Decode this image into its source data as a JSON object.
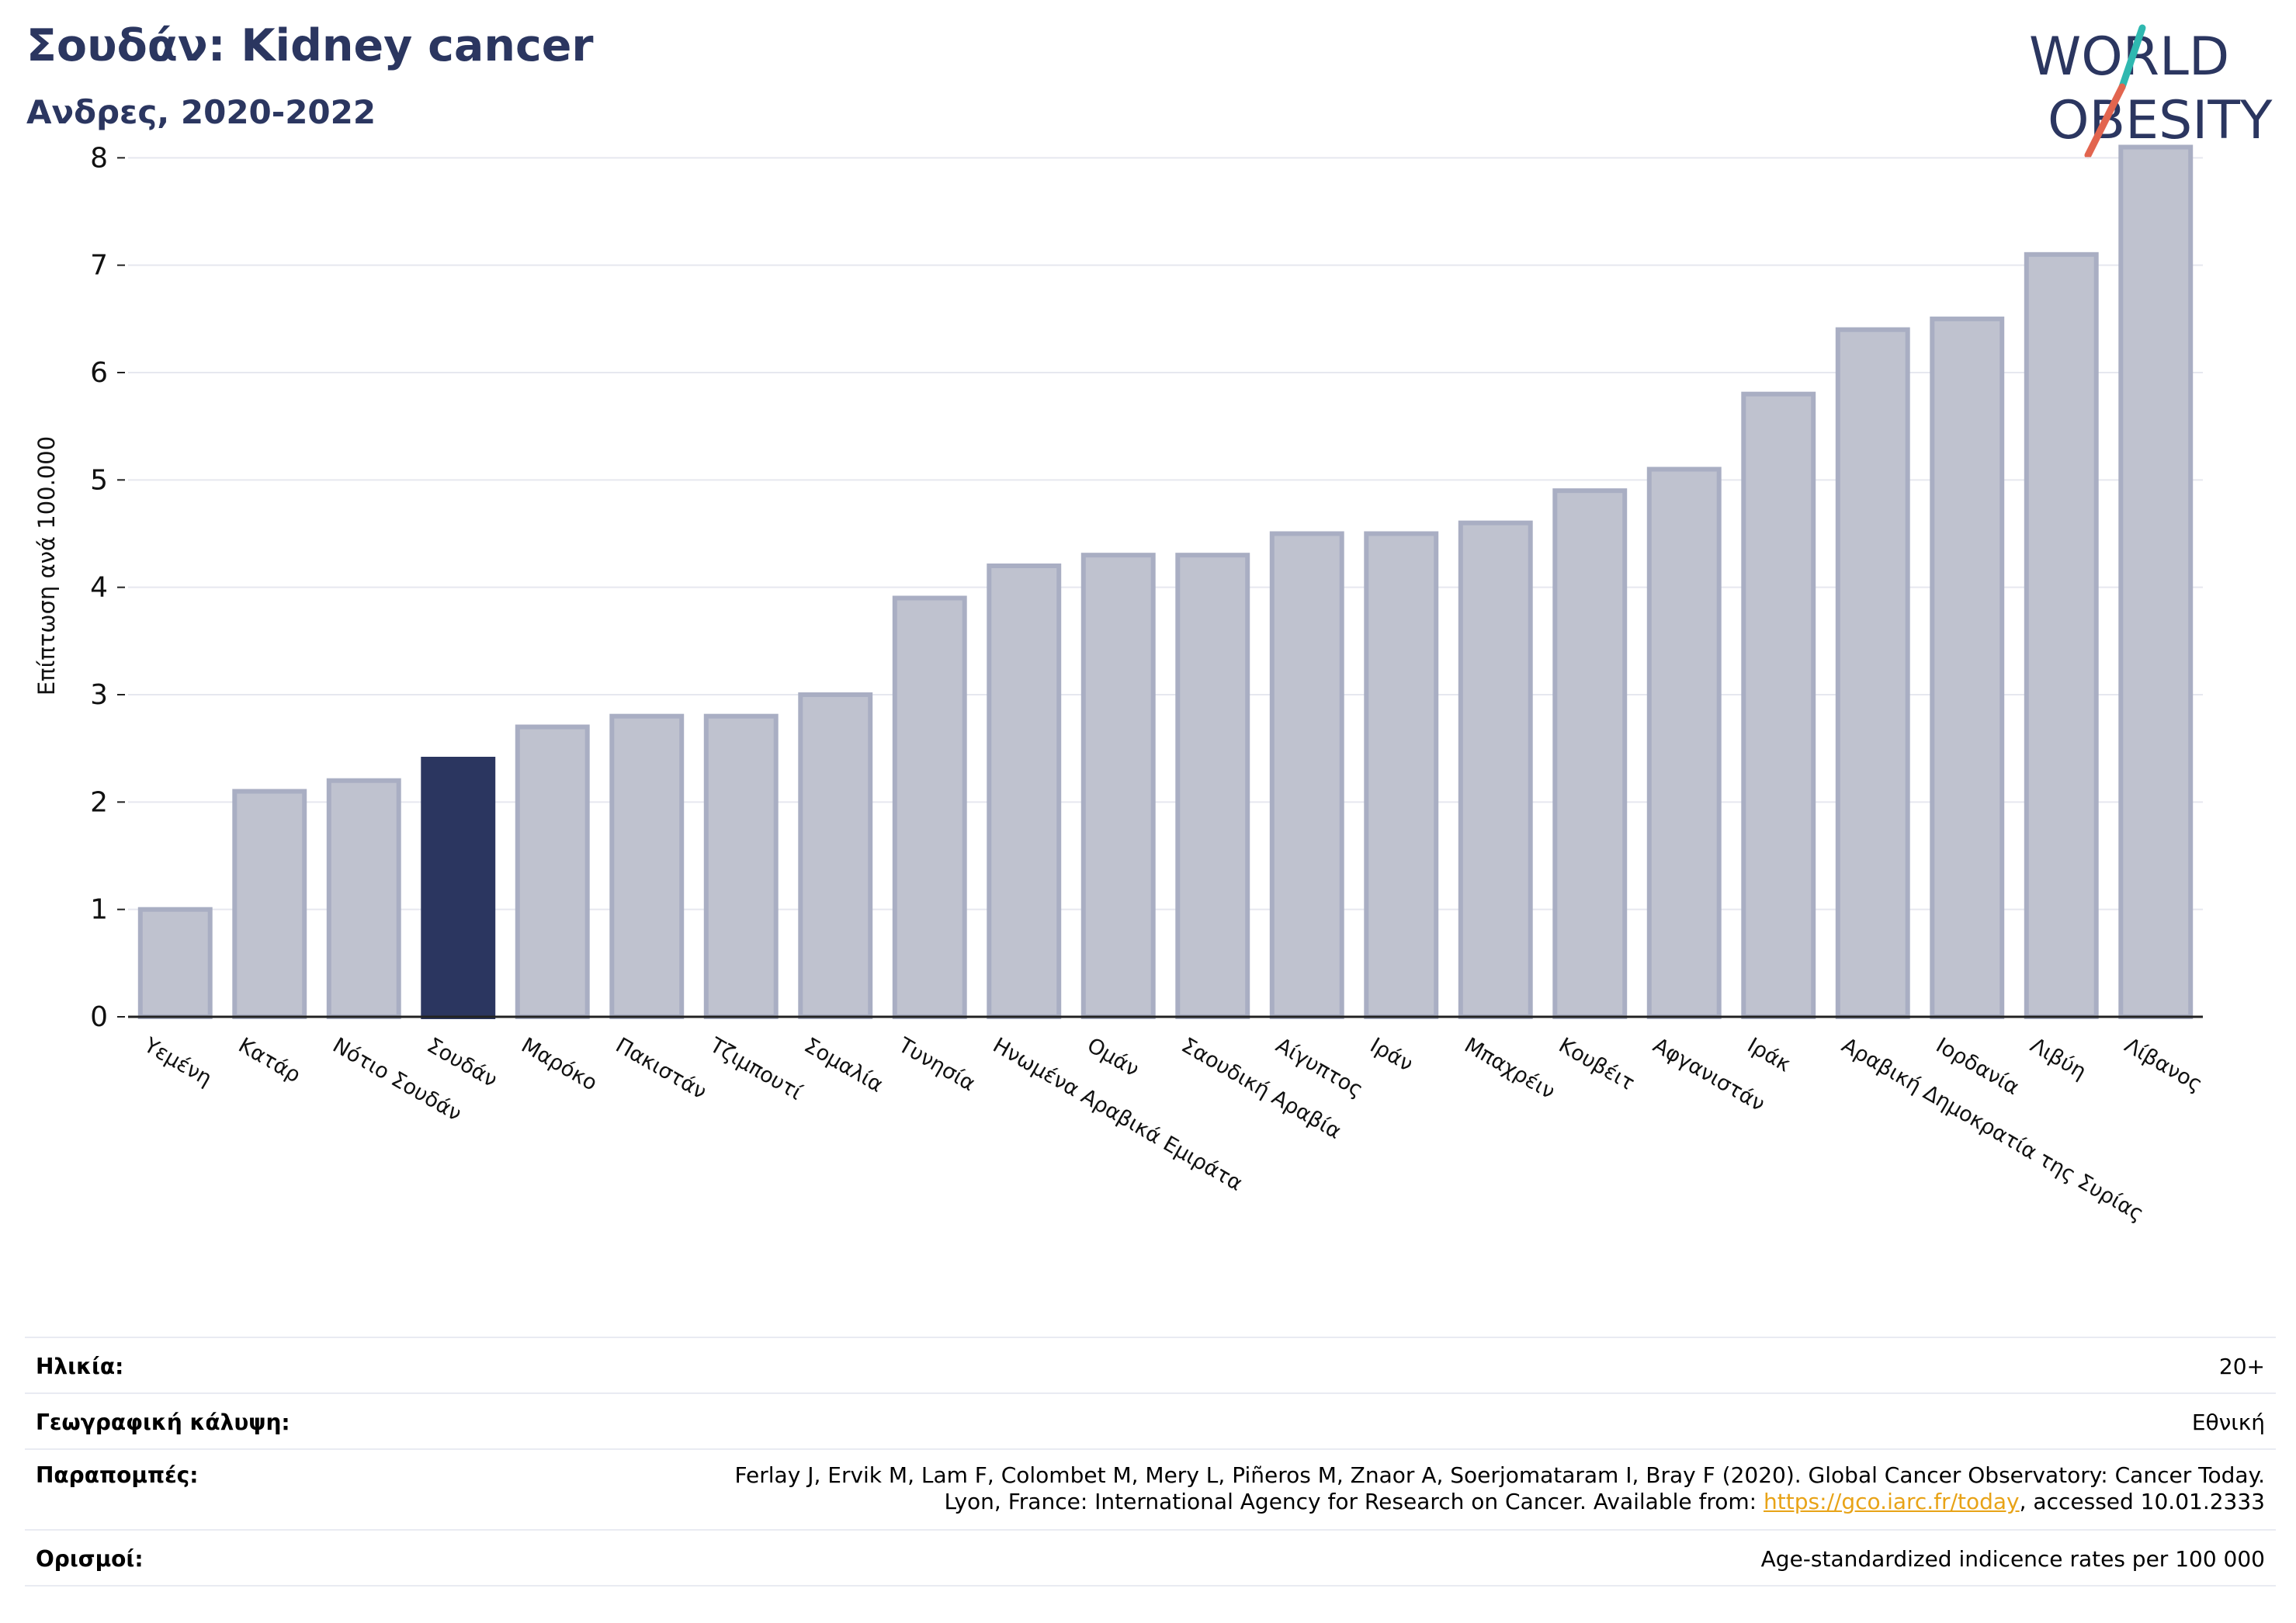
{
  "header": {
    "title": "Σουδάν: Kidney cancer",
    "subtitle": "Ανδρες, 2020-2022"
  },
  "logo": {
    "line1": "WORLD",
    "line2": "OBESITY",
    "colors": {
      "text": "#2b3660",
      "slash_teal": "#2fb8b0",
      "slash_red": "#e2654f"
    }
  },
  "chart_data": {
    "type": "bar",
    "ylabel": "Επίπτωση ανά 100.000",
    "ylim": [
      0,
      8.4
    ],
    "yticks": [
      0,
      1,
      2,
      3,
      4,
      5,
      6,
      7,
      8
    ],
    "grid": true,
    "highlight": "Σουδάν",
    "colors": {
      "bar": "#bfc2cf",
      "bar_edge": "#a9aec3",
      "highlight": "#2b3660"
    },
    "categories": [
      "Υεμένη",
      "Κατάρ",
      "Νότιο Σουδάν",
      "Σουδάν",
      "Μαρόκο",
      "Πακιστάν",
      "Τζιμπουτί",
      "Σομαλία",
      "Τυνησία",
      "Ηνωμένα Αραβικά Εμιράτα",
      "Ομάν",
      "Σαουδική Αραβία",
      "Αίγυπτος",
      "Ιράν",
      "Μπαχρέιν",
      "Κουβέιτ",
      "Αφγανιστάν",
      "Ιράκ",
      "Αραβική Δημοκρατία της Συρίας",
      "Ιορδανία",
      "Λιβύη",
      "Λίβανος"
    ],
    "values": [
      1.0,
      2.1,
      2.2,
      2.4,
      2.7,
      2.8,
      2.8,
      3.0,
      3.9,
      4.2,
      4.3,
      4.3,
      4.5,
      4.5,
      4.6,
      4.9,
      5.1,
      5.8,
      6.4,
      6.5,
      7.1,
      8.1
    ]
  },
  "info": {
    "age_label": "Ηλικία:",
    "age_value": "20+",
    "coverage_label": "Γεωγραφική κάλυψη:",
    "coverage_value": "Εθνική",
    "refs_label": "Παραπομπές:",
    "refs_line1": "Ferlay J, Ervik M, Lam F, Colombet M, Mery L, Piñeros M, Znaor A, Soerjomataram I, Bray F (2020). Global Cancer Observatory: Cancer Today.",
    "refs_line2_prefix": "Lyon, France: International Agency for Research on Cancer. Available from: ",
    "refs_link": "https://gco.iarc.fr/today",
    "refs_line2_suffix": ", accessed 10.01.2333",
    "definitions_label": "Ορισμοί:",
    "definitions_value": "Age-standardized indicence rates per 100 000"
  }
}
